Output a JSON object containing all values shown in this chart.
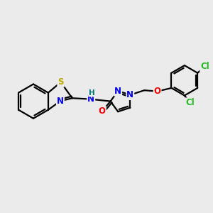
{
  "background_color": "#ebebeb",
  "bond_color": "#000000",
  "bond_width": 1.6,
  "atom_colors": {
    "N": "#0000ee",
    "S": "#bbaa00",
    "O": "#ee0000",
    "Cl": "#22bb22",
    "H": "#007777",
    "C": "#000000"
  },
  "font_size": 8.5
}
